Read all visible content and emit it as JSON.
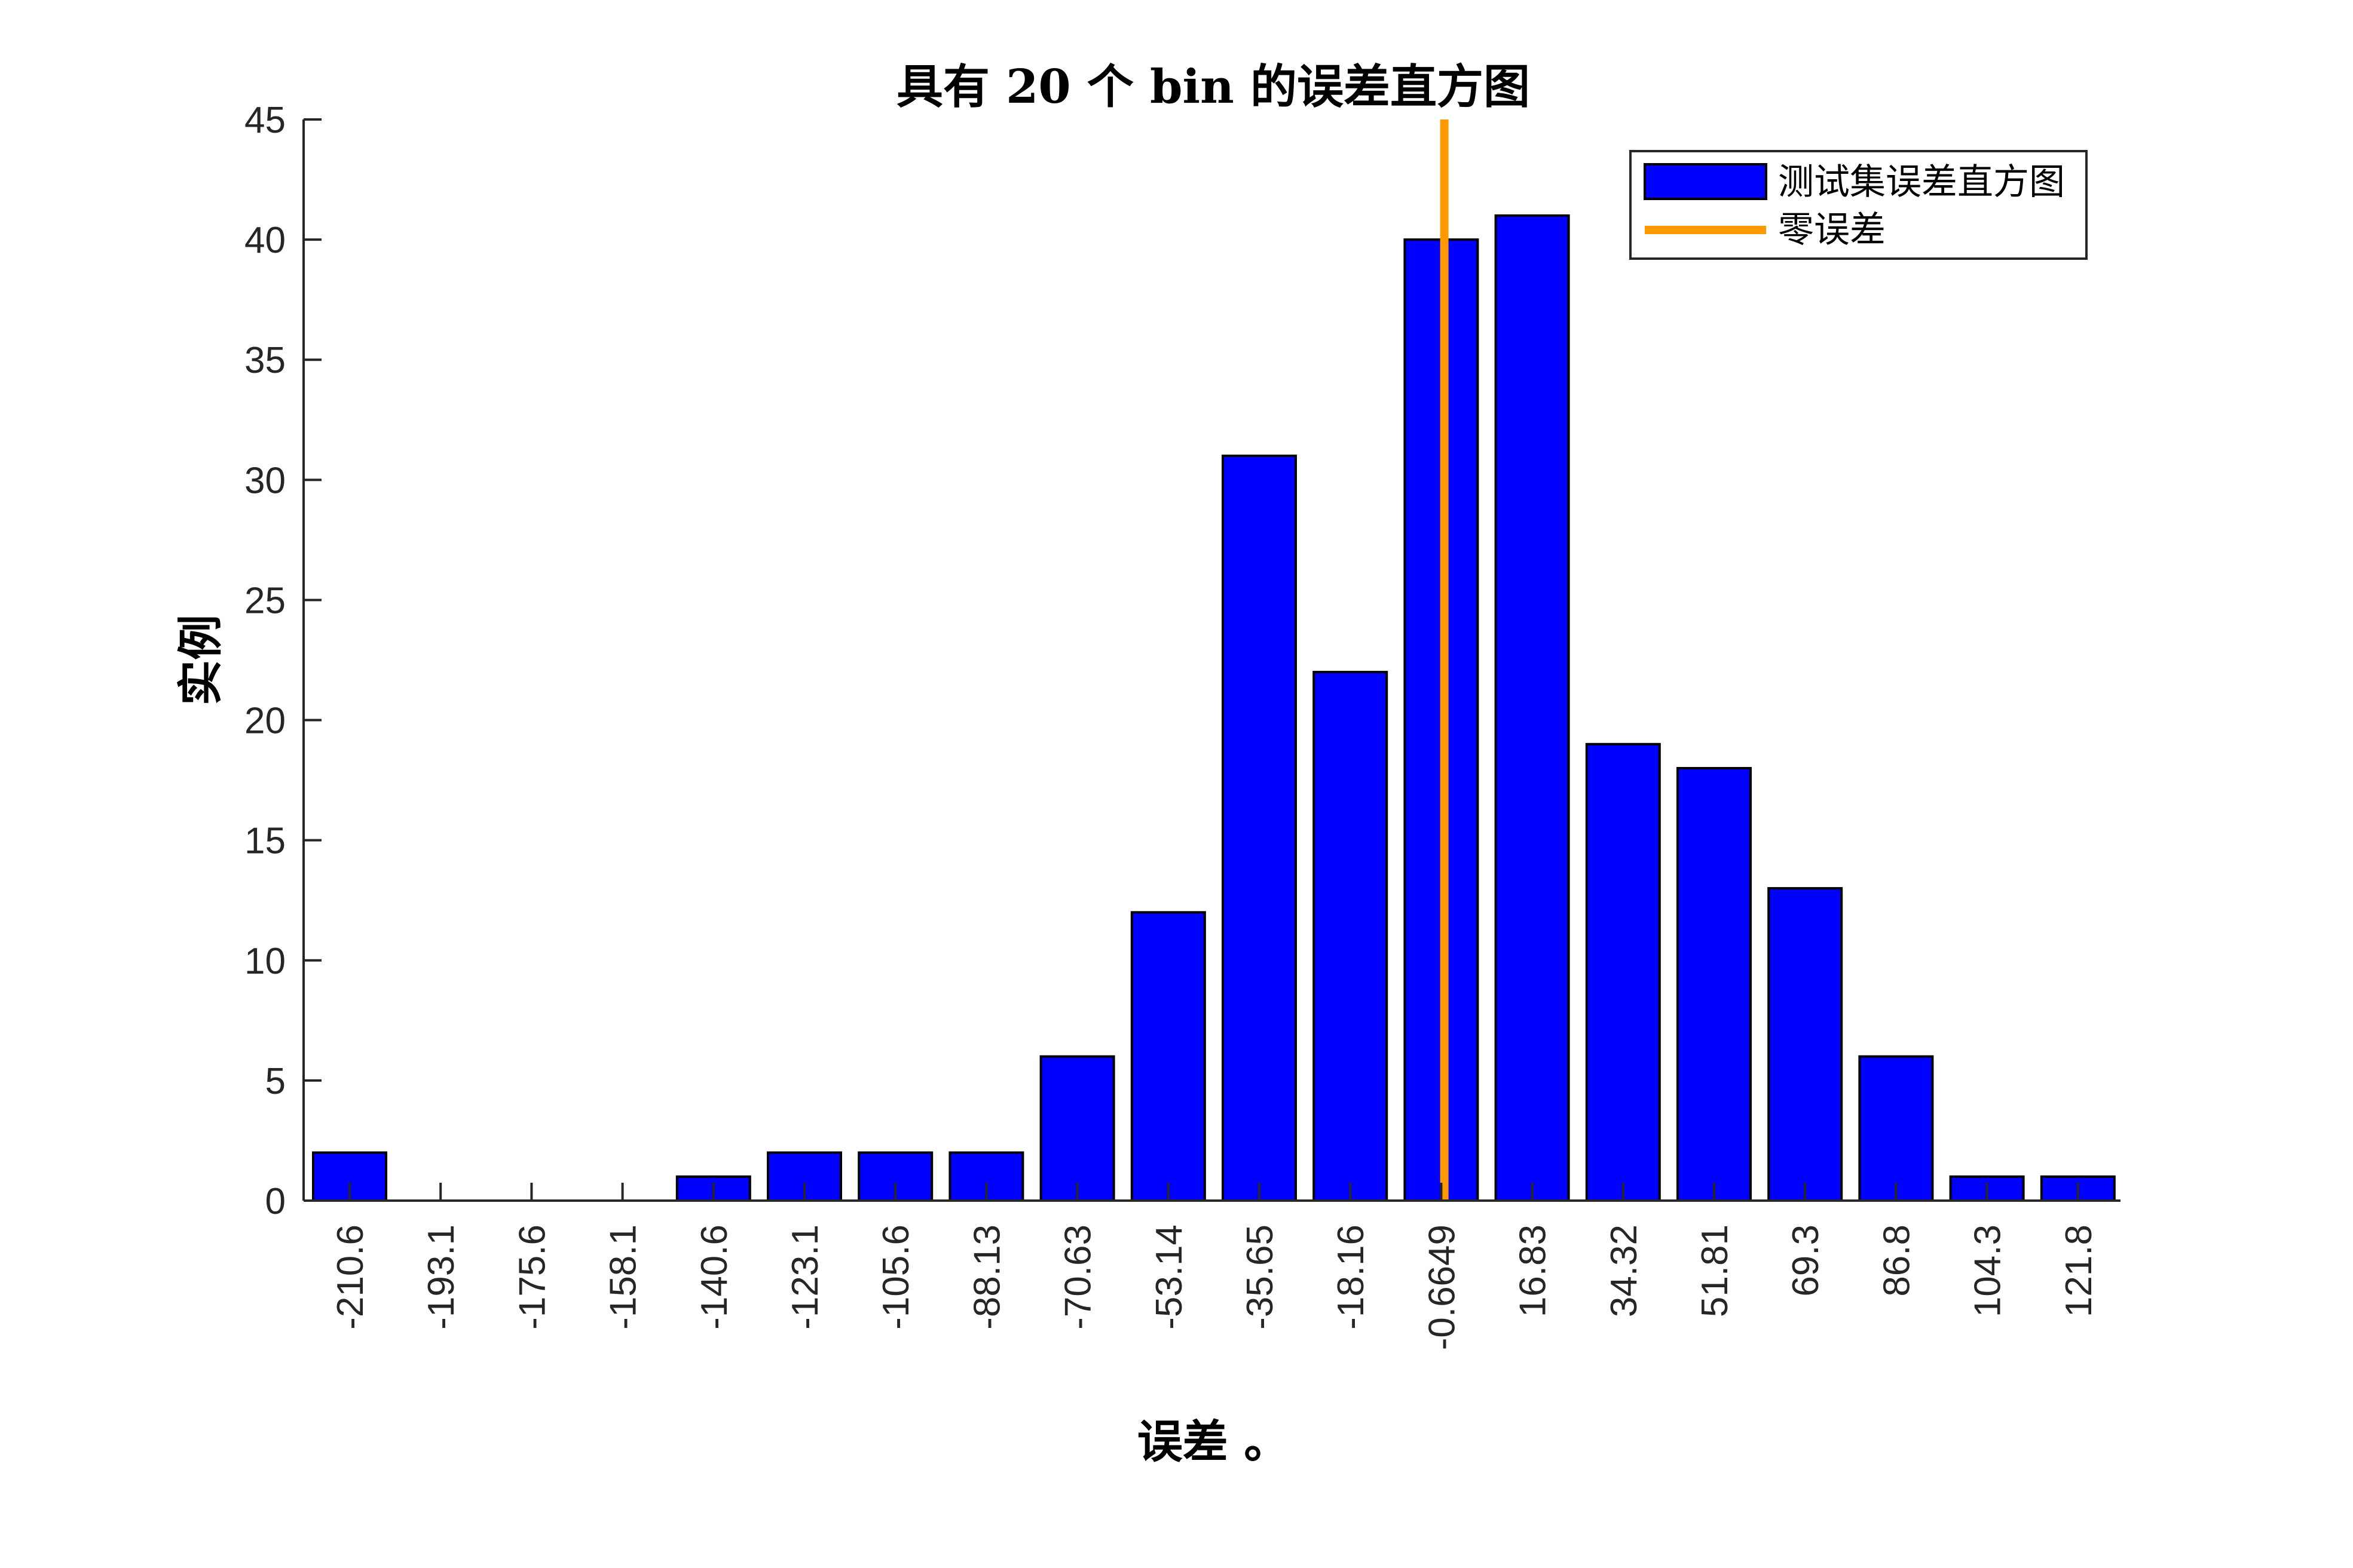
{
  "chart_data": {
    "type": "bar",
    "title": "具有 20 个 bin 的误差直方图",
    "xlabel": "误差 。",
    "ylabel": "实例",
    "categories": [
      "-210.6",
      "-193.1",
      "-175.6",
      "-158.1",
      "-140.6",
      "-123.1",
      "-105.6",
      "-88.13",
      "-70.63",
      "-53.14",
      "-35.65",
      "-18.16",
      "-0.6649",
      "16.83",
      "34.32",
      "51.81",
      "69.3",
      "86.8",
      "104.3",
      "121.8"
    ],
    "series": [
      {
        "name": "测试集误差直方图",
        "color": "#0000FF",
        "values": [
          2,
          0,
          0,
          0,
          1,
          2,
          2,
          2,
          6,
          12,
          31,
          22,
          40,
          41,
          19,
          18,
          13,
          6,
          1,
          1
        ]
      }
    ],
    "reference_lines": [
      {
        "name": "零误差",
        "orientation": "vertical",
        "x": 0,
        "color": "#FF9900"
      }
    ],
    "ylim": [
      0,
      45
    ],
    "yticks": [
      0,
      5,
      10,
      15,
      20,
      25,
      30,
      35,
      40,
      45
    ],
    "grid": false,
    "legend_position": "upper right"
  },
  "legend": {
    "items": [
      {
        "label": "测试集误差直方图",
        "type": "patch",
        "color": "#0000FF"
      },
      {
        "label": "零误差",
        "type": "line",
        "color": "#FF9900"
      }
    ]
  }
}
